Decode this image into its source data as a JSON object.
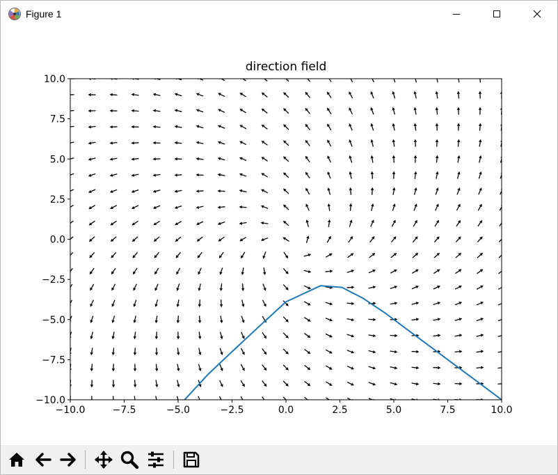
{
  "window": {
    "title": "Figure 1",
    "app_icon": "matplotlib-icon",
    "controls": [
      "minimize-icon",
      "maximize-icon",
      "close-icon"
    ]
  },
  "toolbar": {
    "buttons": [
      "home-icon",
      "back-arrow-icon",
      "forward-arrow-icon",
      "pan-icon",
      "zoom-icon",
      "configure-subplots-icon",
      "save-icon"
    ]
  },
  "chart_data": {
    "type": "quiver",
    "title": "direction field",
    "xlabel": "",
    "ylabel": "",
    "xlim": [
      -10,
      10
    ],
    "ylim": [
      -10,
      10
    ],
    "xticks": [
      "−10.0",
      "−7.5",
      "−5.0",
      "−2.5",
      "0.0",
      "2.5",
      "5.0",
      "7.5",
      "10.0"
    ],
    "yticks": [
      "−10.0",
      "−7.5",
      "−5.0",
      "−2.5",
      "0.0",
      "2.5",
      "5.0",
      "7.5",
      "10.0"
    ],
    "grid": false,
    "quiver_grid": {
      "nx": 21,
      "ny": 21,
      "x_range": [
        -10,
        10
      ],
      "y_range": [
        -10,
        10
      ],
      "field_description": "normalized direction field, arrows point generally toward lower-left above the diagonal and right / up-right near the lower-right"
    },
    "series": [
      {
        "name": "",
        "color": "#1f77b4",
        "x": [
          -4.7,
          -3.6,
          -2.5,
          -1.3,
          0.0,
          1.6,
          2.6,
          3.6,
          4.6,
          5.7,
          6.8,
          7.8,
          8.9,
          10.0
        ],
        "y": [
          -10.0,
          -8.4,
          -7.0,
          -5.5,
          -3.9,
          -2.9,
          -3.0,
          -3.7,
          -4.6,
          -5.7,
          -6.8,
          -7.8,
          -8.9,
          -10.0
        ]
      }
    ]
  }
}
